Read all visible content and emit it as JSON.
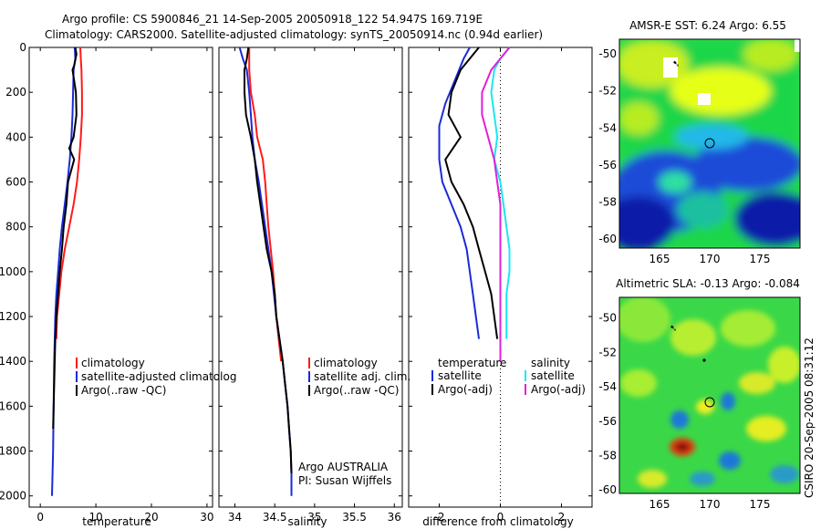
{
  "header": {
    "line1": "Argo profile: CS 5900846_21 14-Sep-2005 20050918_122 54.947S 169.719E",
    "line2": "Climatology: CARS2000. Satellite-adjusted climatology: synTS_20050914.nc (0.94d earlier)"
  },
  "credit": "CSIRO 20-Sep-2005 08:31:12",
  "colors": {
    "climatology": "#ff1a1a",
    "satellite": "#1a2bd6",
    "argo": "#000000",
    "salinity_satellite": "#18e8f0",
    "salinity_argo": "#e020d8"
  },
  "chart_data": [
    {
      "type": "line",
      "name": "temperature-profile",
      "xlabel": "temperature",
      "ylabel": "",
      "xlim": [
        -2,
        31
      ],
      "ylim": [
        2050,
        0
      ],
      "xticks": [
        "0",
        "10",
        "20",
        "30"
      ],
      "yticks": [
        "0",
        "200",
        "400",
        "600",
        "800",
        "1000",
        "1200",
        "1400",
        "1600",
        "1800",
        "2000"
      ],
      "legend": [
        "climatology",
        "satellite-adjusted climatolog",
        "Argo(..raw -QC)"
      ],
      "series": [
        {
          "name": "climatology",
          "color": "#ff1a1a",
          "points": [
            [
              7.2,
              0
            ],
            [
              7.3,
              50
            ],
            [
              7.4,
              100
            ],
            [
              7.5,
              200
            ],
            [
              7.5,
              300
            ],
            [
              7.3,
              400
            ],
            [
              7.0,
              500
            ],
            [
              6.6,
              600
            ],
            [
              6.0,
              700
            ],
            [
              5.2,
              800
            ],
            [
              4.4,
              900
            ],
            [
              3.8,
              1000
            ],
            [
              3.4,
              1100
            ],
            [
              3.0,
              1200
            ],
            [
              2.9,
              1300
            ]
          ]
        },
        {
          "name": "satellite-adjusted climatolog",
          "color": "#1a2bd6",
          "points": [
            [
              6.2,
              0
            ],
            [
              6.3,
              50
            ],
            [
              6.0,
              100
            ],
            [
              5.9,
              200
            ],
            [
              5.8,
              300
            ],
            [
              5.6,
              400
            ],
            [
              5.3,
              500
            ],
            [
              4.9,
              600
            ],
            [
              4.4,
              700
            ],
            [
              3.9,
              800
            ],
            [
              3.5,
              900
            ],
            [
              3.2,
              1000
            ],
            [
              2.9,
              1100
            ],
            [
              2.7,
              1200
            ],
            [
              2.6,
              1300
            ],
            [
              2.5,
              1400
            ],
            [
              2.4,
              1600
            ],
            [
              2.3,
              1800
            ],
            [
              2.1,
              2000
            ]
          ]
        },
        {
          "name": "Argo(..raw -QC)",
          "color": "#000000",
          "points": [
            [
              6.3,
              0
            ],
            [
              6.5,
              30
            ],
            [
              6.1,
              80
            ],
            [
              5.8,
              100
            ],
            [
              6.4,
              200
            ],
            [
              6.5,
              300
            ],
            [
              6.0,
              400
            ],
            [
              5.2,
              450
            ],
            [
              6.1,
              500
            ],
            [
              5.0,
              600
            ],
            [
              4.7,
              700
            ],
            [
              4.2,
              800
            ],
            [
              3.9,
              900
            ],
            [
              3.5,
              1000
            ],
            [
              3.2,
              1100
            ],
            [
              2.9,
              1200
            ],
            [
              2.7,
              1300
            ],
            [
              2.6,
              1400
            ],
            [
              2.5,
              1500
            ],
            [
              2.4,
              1600
            ],
            [
              2.3,
              1700
            ]
          ]
        }
      ]
    },
    {
      "type": "line",
      "name": "salinity-profile",
      "xlabel": "salinity",
      "ylabel": "",
      "xlim": [
        33.8,
        36.1
      ],
      "ylim": [
        2050,
        0
      ],
      "xticks": [
        "34",
        "34.5",
        "35",
        "35.5",
        "36"
      ],
      "legend": [
        "climatology",
        "satellite adj. clim.",
        "Argo(..raw -QC)"
      ],
      "annotation": [
        "Argo AUSTRALIA",
        "PI: Susan Wijffels"
      ],
      "series": [
        {
          "name": "climatology",
          "color": "#ff1a1a",
          "points": [
            [
              34.18,
              0
            ],
            [
              34.18,
              100
            ],
            [
              34.2,
              200
            ],
            [
              34.25,
              300
            ],
            [
              34.28,
              400
            ],
            [
              34.35,
              500
            ],
            [
              34.38,
              600
            ],
            [
              34.4,
              700
            ],
            [
              34.42,
              800
            ],
            [
              34.45,
              900
            ],
            [
              34.48,
              1000
            ],
            [
              34.5,
              1100
            ],
            [
              34.52,
              1200
            ],
            [
              34.55,
              1300
            ],
            [
              34.58,
              1400
            ]
          ]
        },
        {
          "name": "satellite adj. clim.",
          "color": "#1a2bd6",
          "points": [
            [
              34.06,
              0
            ],
            [
              34.1,
              50
            ],
            [
              34.15,
              100
            ],
            [
              34.18,
              200
            ],
            [
              34.2,
              300
            ],
            [
              34.22,
              400
            ],
            [
              34.25,
              500
            ],
            [
              34.3,
              600
            ],
            [
              34.34,
              700
            ],
            [
              34.38,
              800
            ],
            [
              34.42,
              900
            ],
            [
              34.46,
              1000
            ],
            [
              34.49,
              1100
            ],
            [
              34.52,
              1200
            ],
            [
              34.56,
              1300
            ],
            [
              34.6,
              1400
            ],
            [
              34.63,
              1500
            ],
            [
              34.66,
              1600
            ],
            [
              34.68,
              1700
            ],
            [
              34.7,
              1800
            ],
            [
              34.71,
              1900
            ],
            [
              34.71,
              2000
            ]
          ]
        },
        {
          "name": "Argo(..raw -QC)",
          "color": "#000000",
          "points": [
            [
              34.17,
              0
            ],
            [
              34.15,
              50
            ],
            [
              34.12,
              100
            ],
            [
              34.12,
              200
            ],
            [
              34.14,
              300
            ],
            [
              34.2,
              400
            ],
            [
              34.25,
              500
            ],
            [
              34.28,
              600
            ],
            [
              34.32,
              700
            ],
            [
              34.36,
              800
            ],
            [
              34.4,
              900
            ],
            [
              34.46,
              1000
            ],
            [
              34.5,
              1100
            ],
            [
              34.52,
              1200
            ],
            [
              34.56,
              1300
            ],
            [
              34.6,
              1400
            ],
            [
              34.63,
              1500
            ],
            [
              34.66,
              1600
            ],
            [
              34.68,
              1700
            ],
            [
              34.7,
              1800
            ],
            [
              34.71,
              1900
            ]
          ]
        }
      ]
    },
    {
      "type": "line",
      "name": "difference-profile",
      "xlabel": "difference from climatology",
      "ylabel": "",
      "xlim": [
        -3,
        3
      ],
      "ylim": [
        2050,
        0
      ],
      "xticks": [
        "-2",
        "0",
        "2"
      ],
      "zero_line": true,
      "legend_headers": [
        "temperature",
        "salinity"
      ],
      "legend": [
        "satellite",
        "Argo(-adj)",
        "satellite",
        "Argo(-adj)"
      ],
      "series": [
        {
          "name": "temperature satellite",
          "color": "#1a2bd6",
          "points": [
            [
              -1.0,
              0
            ],
            [
              -1.2,
              50
            ],
            [
              -1.5,
              150
            ],
            [
              -1.8,
              250
            ],
            [
              -2.0,
              350
            ],
            [
              -2.0,
              500
            ],
            [
              -1.9,
              600
            ],
            [
              -1.6,
              700
            ],
            [
              -1.3,
              800
            ],
            [
              -1.1,
              900
            ],
            [
              -1.0,
              1000
            ],
            [
              -0.9,
              1100
            ],
            [
              -0.8,
              1200
            ],
            [
              -0.7,
              1300
            ]
          ]
        },
        {
          "name": "temperature Argo(-adj)",
          "color": "#000000",
          "points": [
            [
              -0.7,
              0
            ],
            [
              -1.0,
              50
            ],
            [
              -1.3,
              100
            ],
            [
              -1.6,
              200
            ],
            [
              -1.7,
              300
            ],
            [
              -1.3,
              400
            ],
            [
              -1.8,
              500
            ],
            [
              -1.6,
              600
            ],
            [
              -1.2,
              700
            ],
            [
              -0.9,
              800
            ],
            [
              -0.7,
              900
            ],
            [
              -0.5,
              1000
            ],
            [
              -0.3,
              1100
            ],
            [
              -0.2,
              1200
            ],
            [
              -0.1,
              1300
            ]
          ]
        },
        {
          "name": "salinity satellite",
          "color": "#18e8f0",
          "points": [
            [
              0.3,
              0
            ],
            [
              0.0,
              50
            ],
            [
              -0.2,
              100
            ],
            [
              -0.3,
              200
            ],
            [
              -0.2,
              300
            ],
            [
              -0.1,
              400
            ],
            [
              -0.2,
              500
            ],
            [
              0.0,
              600
            ],
            [
              0.1,
              700
            ],
            [
              0.2,
              800
            ],
            [
              0.3,
              900
            ],
            [
              0.3,
              1000
            ],
            [
              0.2,
              1100
            ],
            [
              0.2,
              1200
            ],
            [
              0.2,
              1300
            ]
          ]
        },
        {
          "name": "salinity Argo(-adj)",
          "color": "#e020d8",
          "points": [
            [
              0.3,
              0
            ],
            [
              0.0,
              50
            ],
            [
              -0.3,
              100
            ],
            [
              -0.6,
              200
            ],
            [
              -0.6,
              300
            ],
            [
              -0.4,
              400
            ],
            [
              -0.2,
              500
            ],
            [
              -0.1,
              600
            ],
            [
              0.0,
              700
            ],
            [
              0.0,
              800
            ],
            [
              0.0,
              900
            ],
            [
              0.0,
              1000
            ],
            [
              0.0,
              1100
            ],
            [
              0.0,
              1200
            ],
            [
              0.0,
              1300
            ],
            [
              0.0,
              1400
            ]
          ]
        }
      ]
    },
    {
      "type": "heatmap",
      "name": "sst-map",
      "title": "AMSR-E SST: 6.24 Argo: 6.55",
      "xlim": [
        161,
        179
      ],
      "ylim": [
        -60.5,
        -49.2
      ],
      "xticks": [
        "165",
        "170",
        "175"
      ],
      "yticks": [
        "-50",
        "-52",
        "-54",
        "-56",
        "-58",
        "-60"
      ],
      "argo_location": [
        169.719,
        -54.947
      ]
    },
    {
      "type": "heatmap",
      "name": "sla-map",
      "title": "Altimetric SLA: -0.13 Argo: -0.084",
      "xlim": [
        161,
        179
      ],
      "ylim": [
        -60.2,
        -48.8
      ],
      "xticks": [
        "165",
        "170",
        "175"
      ],
      "yticks": [
        "-50",
        "-52",
        "-54",
        "-56",
        "-58",
        "-60"
      ],
      "argo_location": [
        169.719,
        -54.947
      ]
    }
  ]
}
